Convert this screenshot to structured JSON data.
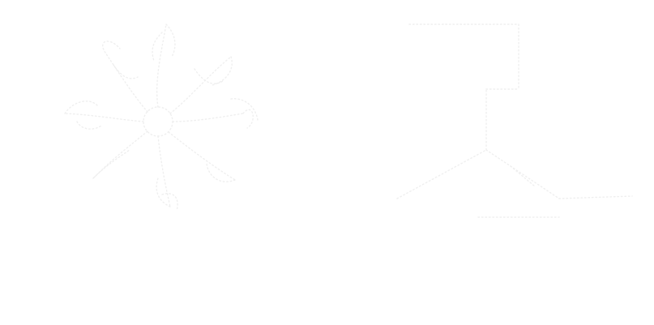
{
  "image": {
    "background": "#ffffff",
    "stroke_color": "#efefef"
  },
  "caption": {
    "line1": "",
    "line2": ""
  }
}
